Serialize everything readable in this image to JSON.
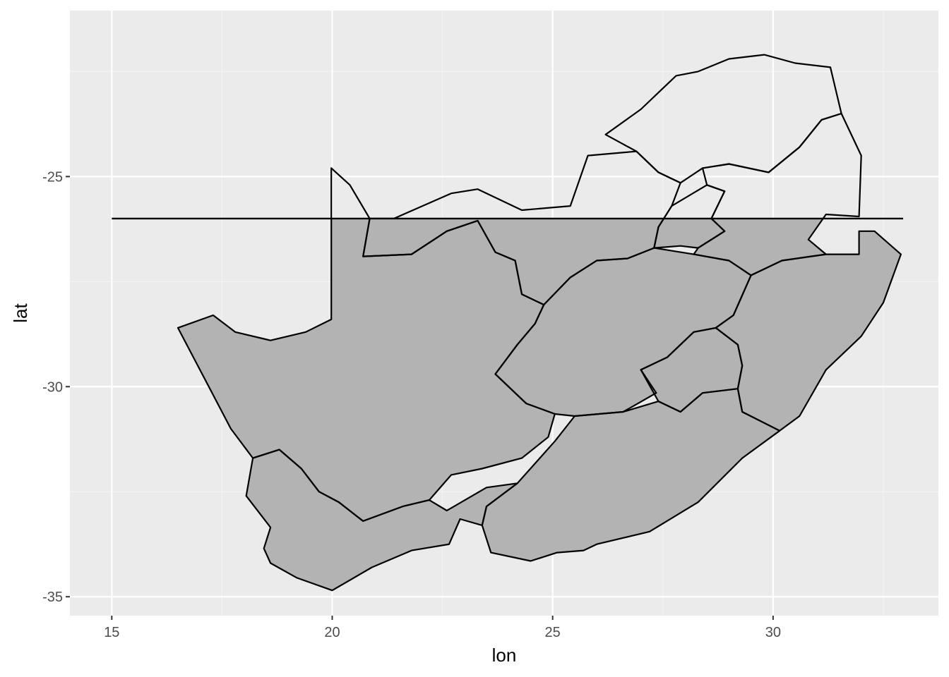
{
  "chart_data": {
    "type": "map",
    "xlabel": "lon",
    "ylabel": "lat",
    "xlim": [
      14.05,
      33.75
    ],
    "ylim": [
      -35.45,
      -21.05
    ],
    "x_ticks": [
      15,
      20,
      25,
      30
    ],
    "x_tick_labels": [
      "15",
      "20",
      "25",
      "30"
    ],
    "y_ticks": [
      -25,
      -30,
      -35
    ],
    "y_tick_labels": [
      "-25",
      "-30",
      "-35"
    ],
    "grid": true,
    "fill_cutoff_lat": -26.0,
    "colors": {
      "panel_background": "#ebebeb",
      "grid_major": "#ffffff",
      "grid_minor": "#f4f4f4",
      "region_fill": "#b3b3b3",
      "border": "#000000",
      "tick_text": "#4d4d4d"
    },
    "regions": [
      {
        "id": "western-cape",
        "points": [
          [
            18.45,
            -33.85
          ],
          [
            18.6,
            -33.35
          ],
          [
            18.05,
            -32.6
          ],
          [
            18.2,
            -31.7
          ],
          [
            18.8,
            -31.5
          ],
          [
            19.3,
            -31.95
          ],
          [
            19.7,
            -32.5
          ],
          [
            20.15,
            -32.75
          ],
          [
            20.7,
            -33.2
          ],
          [
            21.6,
            -32.85
          ],
          [
            22.2,
            -32.7
          ],
          [
            22.6,
            -32.95
          ],
          [
            23.5,
            -32.4
          ],
          [
            24.2,
            -32.3
          ],
          [
            23.5,
            -32.85
          ],
          [
            23.4,
            -33.3
          ],
          [
            22.9,
            -33.15
          ],
          [
            22.65,
            -33.75
          ],
          [
            21.8,
            -33.9
          ],
          [
            20.9,
            -34.3
          ],
          [
            20.0,
            -34.85
          ],
          [
            19.2,
            -34.55
          ],
          [
            18.6,
            -34.2
          ]
        ]
      },
      {
        "id": "northern-cape",
        "points": [
          [
            16.5,
            -28.6
          ],
          [
            17.3,
            -28.3
          ],
          [
            17.8,
            -28.7
          ],
          [
            18.6,
            -28.9
          ],
          [
            19.4,
            -28.7
          ],
          [
            19.98,
            -28.4
          ],
          [
            19.98,
            -24.8
          ],
          [
            20.4,
            -25.2
          ],
          [
            20.85,
            -26.0
          ],
          [
            20.7,
            -26.9
          ],
          [
            21.8,
            -26.85
          ],
          [
            22.6,
            -26.3
          ],
          [
            23.3,
            -26.05
          ],
          [
            23.7,
            -26.8
          ],
          [
            24.15,
            -27.0
          ],
          [
            24.3,
            -27.8
          ],
          [
            24.8,
            -28.05
          ],
          [
            24.6,
            -28.5
          ],
          [
            24.2,
            -29.0
          ],
          [
            23.7,
            -29.7
          ],
          [
            24.4,
            -30.4
          ],
          [
            25.05,
            -30.65
          ],
          [
            24.9,
            -31.2
          ],
          [
            24.3,
            -31.7
          ],
          [
            23.4,
            -31.95
          ],
          [
            22.7,
            -32.1
          ],
          [
            22.2,
            -32.7
          ],
          [
            21.6,
            -32.85
          ],
          [
            20.7,
            -33.2
          ],
          [
            20.15,
            -32.75
          ],
          [
            19.7,
            -32.5
          ],
          [
            19.3,
            -31.95
          ],
          [
            18.8,
            -31.5
          ],
          [
            18.2,
            -31.7
          ],
          [
            17.7,
            -31.0
          ],
          [
            17.2,
            -30.0
          ]
        ]
      },
      {
        "id": "eastern-cape",
        "points": [
          [
            24.2,
            -32.3
          ],
          [
            25.05,
            -31.3
          ],
          [
            25.5,
            -30.7
          ],
          [
            26.6,
            -30.6
          ],
          [
            27.4,
            -30.35
          ],
          [
            27.9,
            -30.6
          ],
          [
            28.4,
            -30.15
          ],
          [
            29.2,
            -30.05
          ],
          [
            29.3,
            -30.6
          ],
          [
            30.15,
            -31.05
          ],
          [
            29.3,
            -31.7
          ],
          [
            28.3,
            -32.75
          ],
          [
            27.2,
            -33.45
          ],
          [
            26.0,
            -33.75
          ],
          [
            25.7,
            -33.9
          ],
          [
            25.1,
            -33.95
          ],
          [
            24.5,
            -34.15
          ],
          [
            23.6,
            -33.95
          ],
          [
            23.4,
            -33.3
          ],
          [
            23.5,
            -32.85
          ]
        ]
      },
      {
        "id": "free-state",
        "points": [
          [
            24.8,
            -28.05
          ],
          [
            25.4,
            -27.4
          ],
          [
            26.0,
            -27.0
          ],
          [
            26.7,
            -26.95
          ],
          [
            27.3,
            -26.7
          ],
          [
            28.2,
            -26.85
          ],
          [
            29.0,
            -27.0
          ],
          [
            29.5,
            -27.35
          ],
          [
            29.1,
            -28.3
          ],
          [
            28.7,
            -28.6
          ],
          [
            28.2,
            -28.7
          ],
          [
            27.6,
            -29.3
          ],
          [
            27.0,
            -29.6
          ],
          [
            27.35,
            -30.15
          ],
          [
            26.6,
            -30.6
          ],
          [
            25.5,
            -30.7
          ],
          [
            25.05,
            -30.65
          ],
          [
            24.4,
            -30.4
          ],
          [
            23.7,
            -29.7
          ],
          [
            24.2,
            -29.0
          ],
          [
            24.6,
            -28.5
          ]
        ]
      },
      {
        "id": "lesotho",
        "points": [
          [
            27.0,
            -29.6
          ],
          [
            27.6,
            -29.3
          ],
          [
            28.2,
            -28.7
          ],
          [
            28.7,
            -28.6
          ],
          [
            29.2,
            -29.0
          ],
          [
            29.3,
            -29.5
          ],
          [
            29.2,
            -30.05
          ],
          [
            28.4,
            -30.15
          ],
          [
            27.9,
            -30.6
          ],
          [
            27.4,
            -30.35
          ]
        ]
      },
      {
        "id": "kwazulu-natal",
        "points": [
          [
            29.5,
            -27.35
          ],
          [
            30.2,
            -27.0
          ],
          [
            31.2,
            -26.85
          ],
          [
            31.95,
            -26.85
          ],
          [
            31.95,
            -26.3
          ],
          [
            32.3,
            -26.3
          ],
          [
            32.9,
            -26.85
          ],
          [
            32.5,
            -28.0
          ],
          [
            32.0,
            -28.8
          ],
          [
            31.2,
            -29.6
          ],
          [
            30.6,
            -30.7
          ],
          [
            30.15,
            -31.05
          ],
          [
            29.3,
            -30.6
          ],
          [
            29.2,
            -30.05
          ],
          [
            29.3,
            -29.5
          ],
          [
            29.2,
            -29.0
          ],
          [
            28.7,
            -28.6
          ],
          [
            29.1,
            -28.3
          ]
        ]
      },
      {
        "id": "north-west",
        "points": [
          [
            20.85,
            -26.0
          ],
          [
            21.4,
            -26.0
          ],
          [
            22.7,
            -25.4
          ],
          [
            23.3,
            -25.3
          ],
          [
            24.3,
            -25.8
          ],
          [
            25.4,
            -25.7
          ],
          [
            25.8,
            -24.5
          ],
          [
            26.9,
            -24.4
          ],
          [
            27.4,
            -24.9
          ],
          [
            27.9,
            -25.15
          ],
          [
            27.7,
            -25.7
          ],
          [
            27.4,
            -26.2
          ],
          [
            27.3,
            -26.7
          ],
          [
            26.7,
            -26.95
          ],
          [
            26.0,
            -27.0
          ],
          [
            25.4,
            -27.4
          ],
          [
            24.8,
            -28.05
          ],
          [
            24.3,
            -27.8
          ],
          [
            24.15,
            -27.0
          ],
          [
            23.7,
            -26.8
          ],
          [
            23.3,
            -26.05
          ],
          [
            22.6,
            -26.3
          ],
          [
            21.8,
            -26.85
          ],
          [
            20.7,
            -26.9
          ]
        ]
      },
      {
        "id": "gauteng",
        "points": [
          [
            27.4,
            -26.2
          ],
          [
            27.7,
            -25.7
          ],
          [
            28.1,
            -25.45
          ],
          [
            28.5,
            -25.2
          ],
          [
            28.9,
            -25.35
          ],
          [
            28.6,
            -26.0
          ],
          [
            28.9,
            -26.3
          ],
          [
            28.3,
            -26.7
          ],
          [
            27.9,
            -26.65
          ],
          [
            27.3,
            -26.7
          ]
        ]
      },
      {
        "id": "limpopo",
        "points": [
          [
            26.2,
            -24.0
          ],
          [
            27.0,
            -23.4
          ],
          [
            27.8,
            -22.6
          ],
          [
            28.3,
            -22.5
          ],
          [
            29.0,
            -22.2
          ],
          [
            29.8,
            -22.1
          ],
          [
            30.5,
            -22.3
          ],
          [
            31.3,
            -22.4
          ],
          [
            31.55,
            -23.5
          ],
          [
            31.1,
            -23.65
          ],
          [
            30.6,
            -24.3
          ],
          [
            29.9,
            -24.9
          ],
          [
            29.0,
            -24.7
          ],
          [
            28.4,
            -24.8
          ],
          [
            27.9,
            -25.15
          ],
          [
            27.4,
            -24.9
          ],
          [
            26.9,
            -24.4
          ]
        ]
      },
      {
        "id": "mpumalanga",
        "points": [
          [
            28.5,
            -25.2
          ],
          [
            28.4,
            -24.8
          ],
          [
            29.0,
            -24.7
          ],
          [
            29.9,
            -24.9
          ],
          [
            30.6,
            -24.3
          ],
          [
            31.1,
            -23.65
          ],
          [
            31.55,
            -23.5
          ],
          [
            32.0,
            -24.5
          ],
          [
            31.95,
            -25.95
          ],
          [
            31.2,
            -25.9
          ],
          [
            30.8,
            -26.5
          ],
          [
            31.2,
            -26.85
          ],
          [
            30.2,
            -27.0
          ],
          [
            29.5,
            -27.35
          ],
          [
            29.0,
            -27.0
          ],
          [
            28.2,
            -26.85
          ],
          [
            28.3,
            -26.7
          ],
          [
            28.9,
            -26.3
          ],
          [
            28.6,
            -26.0
          ],
          [
            28.9,
            -25.35
          ]
        ]
      }
    ]
  }
}
